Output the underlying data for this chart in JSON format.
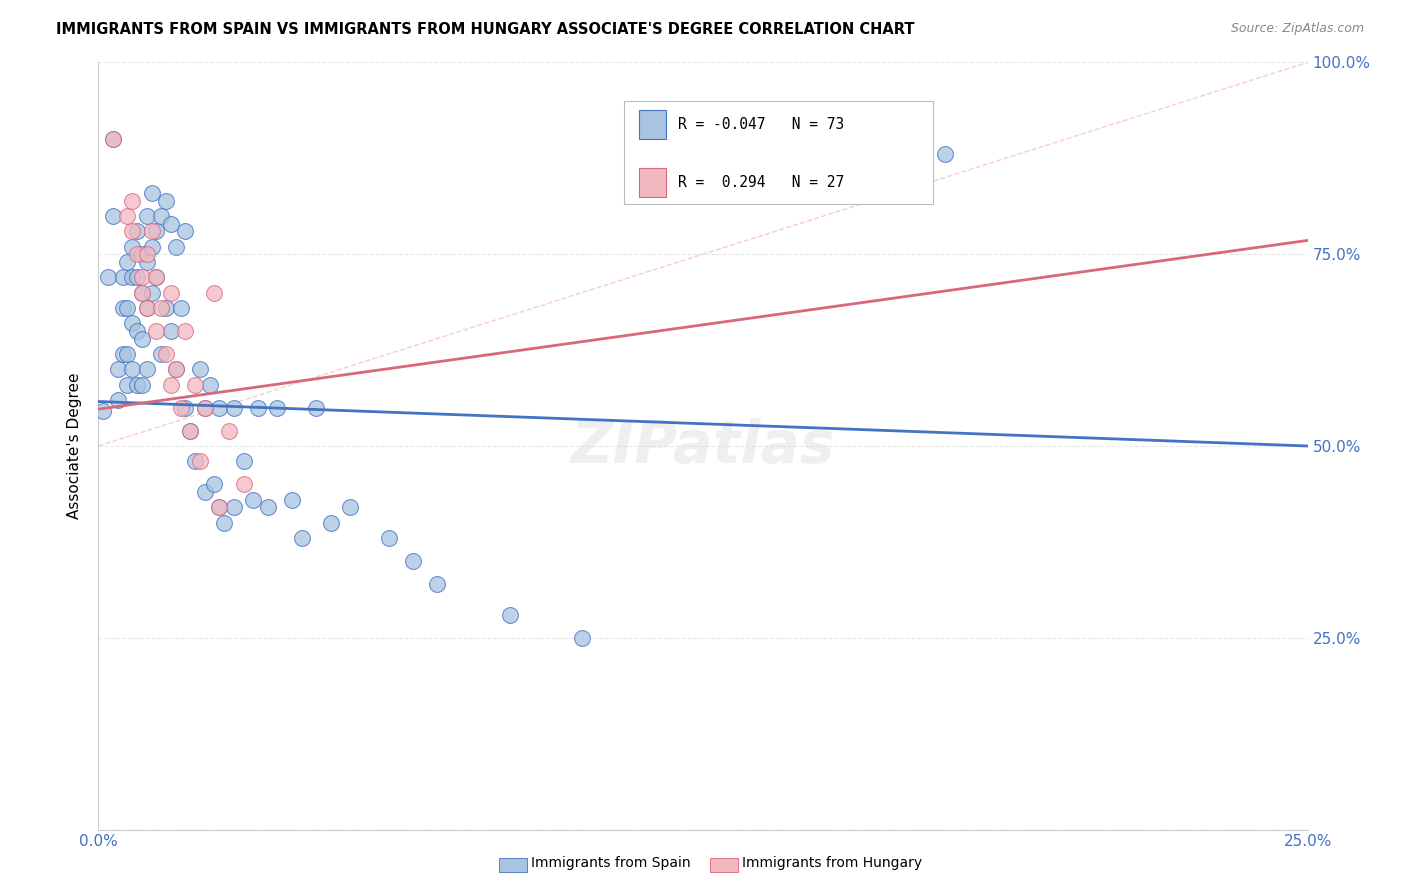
{
  "title": "IMMIGRANTS FROM SPAIN VS IMMIGRANTS FROM HUNGARY ASSOCIATE'S DEGREE CORRELATION CHART",
  "source": "Source: ZipAtlas.com",
  "ylabel": "Associate's Degree",
  "legend_blue": {
    "R": "-0.047",
    "N": "73",
    "label": "Immigrants from Spain"
  },
  "legend_pink": {
    "R": " 0.294",
    "N": "27",
    "label": "Immigrants from Hungary"
  },
  "blue_color": "#a8c4e0",
  "pink_color": "#f2b8c0",
  "blue_line_color": "#4472c4",
  "pink_line_color": "#d9687a",
  "dash_line_color": "#f2b8c0",
  "background_color": "#ffffff",
  "grid_color": "#e8e8e8",
  "blue_scatter": [
    [
      0.001,
      0.545
    ],
    [
      0.002,
      0.72
    ],
    [
      0.003,
      0.9
    ],
    [
      0.003,
      0.8
    ],
    [
      0.004,
      0.6
    ],
    [
      0.004,
      0.56
    ],
    [
      0.005,
      0.72
    ],
    [
      0.005,
      0.68
    ],
    [
      0.005,
      0.62
    ],
    [
      0.006,
      0.74
    ],
    [
      0.006,
      0.68
    ],
    [
      0.006,
      0.62
    ],
    [
      0.006,
      0.58
    ],
    [
      0.007,
      0.76
    ],
    [
      0.007,
      0.72
    ],
    [
      0.007,
      0.66
    ],
    [
      0.007,
      0.6
    ],
    [
      0.008,
      0.78
    ],
    [
      0.008,
      0.72
    ],
    [
      0.008,
      0.65
    ],
    [
      0.008,
      0.58
    ],
    [
      0.009,
      0.75
    ],
    [
      0.009,
      0.7
    ],
    [
      0.009,
      0.64
    ],
    [
      0.009,
      0.58
    ],
    [
      0.01,
      0.8
    ],
    [
      0.01,
      0.74
    ],
    [
      0.01,
      0.68
    ],
    [
      0.01,
      0.6
    ],
    [
      0.011,
      0.83
    ],
    [
      0.011,
      0.76
    ],
    [
      0.011,
      0.7
    ],
    [
      0.012,
      0.78
    ],
    [
      0.012,
      0.72
    ],
    [
      0.013,
      0.8
    ],
    [
      0.013,
      0.62
    ],
    [
      0.014,
      0.82
    ],
    [
      0.014,
      0.68
    ],
    [
      0.015,
      0.79
    ],
    [
      0.015,
      0.65
    ],
    [
      0.016,
      0.76
    ],
    [
      0.016,
      0.6
    ],
    [
      0.017,
      0.68
    ],
    [
      0.018,
      0.78
    ],
    [
      0.018,
      0.55
    ],
    [
      0.019,
      0.52
    ],
    [
      0.02,
      0.48
    ],
    [
      0.021,
      0.6
    ],
    [
      0.022,
      0.55
    ],
    [
      0.022,
      0.44
    ],
    [
      0.023,
      0.58
    ],
    [
      0.024,
      0.45
    ],
    [
      0.025,
      0.55
    ],
    [
      0.025,
      0.42
    ],
    [
      0.026,
      0.4
    ],
    [
      0.028,
      0.55
    ],
    [
      0.028,
      0.42
    ],
    [
      0.03,
      0.48
    ],
    [
      0.032,
      0.43
    ],
    [
      0.033,
      0.55
    ],
    [
      0.035,
      0.42
    ],
    [
      0.037,
      0.55
    ],
    [
      0.04,
      0.43
    ],
    [
      0.042,
      0.38
    ],
    [
      0.045,
      0.55
    ],
    [
      0.048,
      0.4
    ],
    [
      0.052,
      0.42
    ],
    [
      0.06,
      0.38
    ],
    [
      0.065,
      0.35
    ],
    [
      0.07,
      0.32
    ],
    [
      0.085,
      0.28
    ],
    [
      0.1,
      0.25
    ],
    [
      0.175,
      0.88
    ]
  ],
  "pink_scatter": [
    [
      0.003,
      0.9
    ],
    [
      0.006,
      0.8
    ],
    [
      0.007,
      0.82
    ],
    [
      0.007,
      0.78
    ],
    [
      0.008,
      0.75
    ],
    [
      0.009,
      0.72
    ],
    [
      0.009,
      0.7
    ],
    [
      0.01,
      0.75
    ],
    [
      0.01,
      0.68
    ],
    [
      0.011,
      0.78
    ],
    [
      0.012,
      0.72
    ],
    [
      0.012,
      0.65
    ],
    [
      0.013,
      0.68
    ],
    [
      0.014,
      0.62
    ],
    [
      0.015,
      0.7
    ],
    [
      0.015,
      0.58
    ],
    [
      0.016,
      0.6
    ],
    [
      0.017,
      0.55
    ],
    [
      0.018,
      0.65
    ],
    [
      0.019,
      0.52
    ],
    [
      0.02,
      0.58
    ],
    [
      0.021,
      0.48
    ],
    [
      0.022,
      0.55
    ],
    [
      0.024,
      0.7
    ],
    [
      0.025,
      0.42
    ],
    [
      0.027,
      0.52
    ],
    [
      0.03,
      0.45
    ]
  ],
  "blue_trend_x": [
    0.0,
    0.25
  ],
  "blue_trend_y": [
    0.558,
    0.5
  ],
  "pink_trend_x": [
    0.0,
    0.25
  ],
  "pink_trend_y": [
    0.548,
    0.768
  ],
  "diag_line_x": [
    0.0,
    0.25
  ],
  "diag_line_y": [
    0.5,
    1.0
  ],
  "xlim": [
    0,
    0.25
  ],
  "ylim": [
    0,
    1.0
  ],
  "xticks": [
    0.0,
    0.05,
    0.1,
    0.15,
    0.2,
    0.25
  ],
  "yticks": [
    0.0,
    0.25,
    0.5,
    0.75,
    1.0
  ]
}
